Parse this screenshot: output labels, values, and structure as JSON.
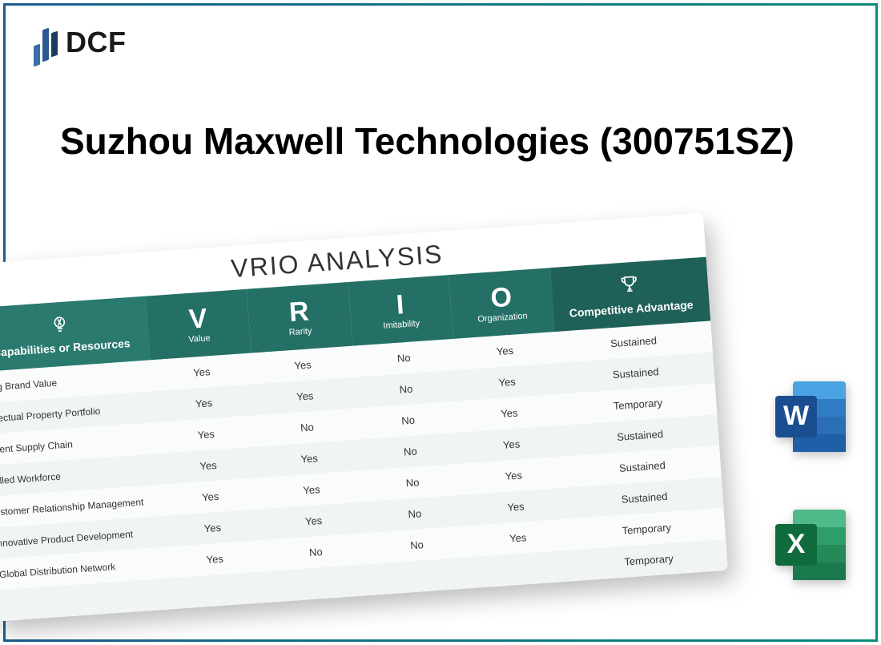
{
  "logo": {
    "text": "DCF"
  },
  "title": "Suzhou Maxwell Technologies (300751SZ)",
  "table": {
    "title": "VRIO ANALYSIS",
    "header": {
      "capabilities": "Capabilities or Resources",
      "v_big": "V",
      "v_sub": "Value",
      "r_big": "R",
      "r_sub": "Rarity",
      "i_big": "I",
      "i_sub": "Imitability",
      "o_big": "O",
      "o_sub": "Organization",
      "advantage": "Competitive Advantage"
    },
    "rows": [
      {
        "cap": "ong Brand Value",
        "v": "Yes",
        "r": "Yes",
        "i": "No",
        "o": "Yes",
        "adv": "Sustained"
      },
      {
        "cap": "ellectual Property Portfolio",
        "v": "Yes",
        "r": "Yes",
        "i": "No",
        "o": "Yes",
        "adv": "Sustained"
      },
      {
        "cap": "icient Supply Chain",
        "v": "Yes",
        "r": "No",
        "i": "No",
        "o": "Yes",
        "adv": "Temporary"
      },
      {
        "cap": "killed Workforce",
        "v": "Yes",
        "r": "Yes",
        "i": "No",
        "o": "Yes",
        "adv": "Sustained"
      },
      {
        "cap": "ustomer Relationship Management",
        "v": "Yes",
        "r": "Yes",
        "i": "No",
        "o": "Yes",
        "adv": "Sustained"
      },
      {
        "cap": "nnovative Product Development",
        "v": "Yes",
        "r": "Yes",
        "i": "No",
        "o": "Yes",
        "adv": "Sustained"
      },
      {
        "cap": "Global Distribution Network",
        "v": "Yes",
        "r": "No",
        "i": "No",
        "o": "Yes",
        "adv": "Temporary"
      },
      {
        "cap": "",
        "v": "",
        "r": "",
        "i": "",
        "o": "",
        "adv": "Temporary"
      }
    ],
    "colors": {
      "header_main": "#247066",
      "header_first": "#2a7a70",
      "header_last": "#1f6158",
      "row_even": "#f0f5f4",
      "row_odd": "#fafcfc"
    }
  },
  "icons": {
    "word": {
      "letter": "W",
      "bg_light": "#4ba3e3",
      "bg_mid": "#2f7cc4",
      "bg_dark": "#1f5fa8",
      "badge": "#1b4e90"
    },
    "excel": {
      "letter": "X",
      "bg_light": "#4fb98a",
      "bg_mid": "#2d9e6a",
      "bg_dark": "#1a7a4e",
      "badge": "#0f6b3c"
    }
  }
}
